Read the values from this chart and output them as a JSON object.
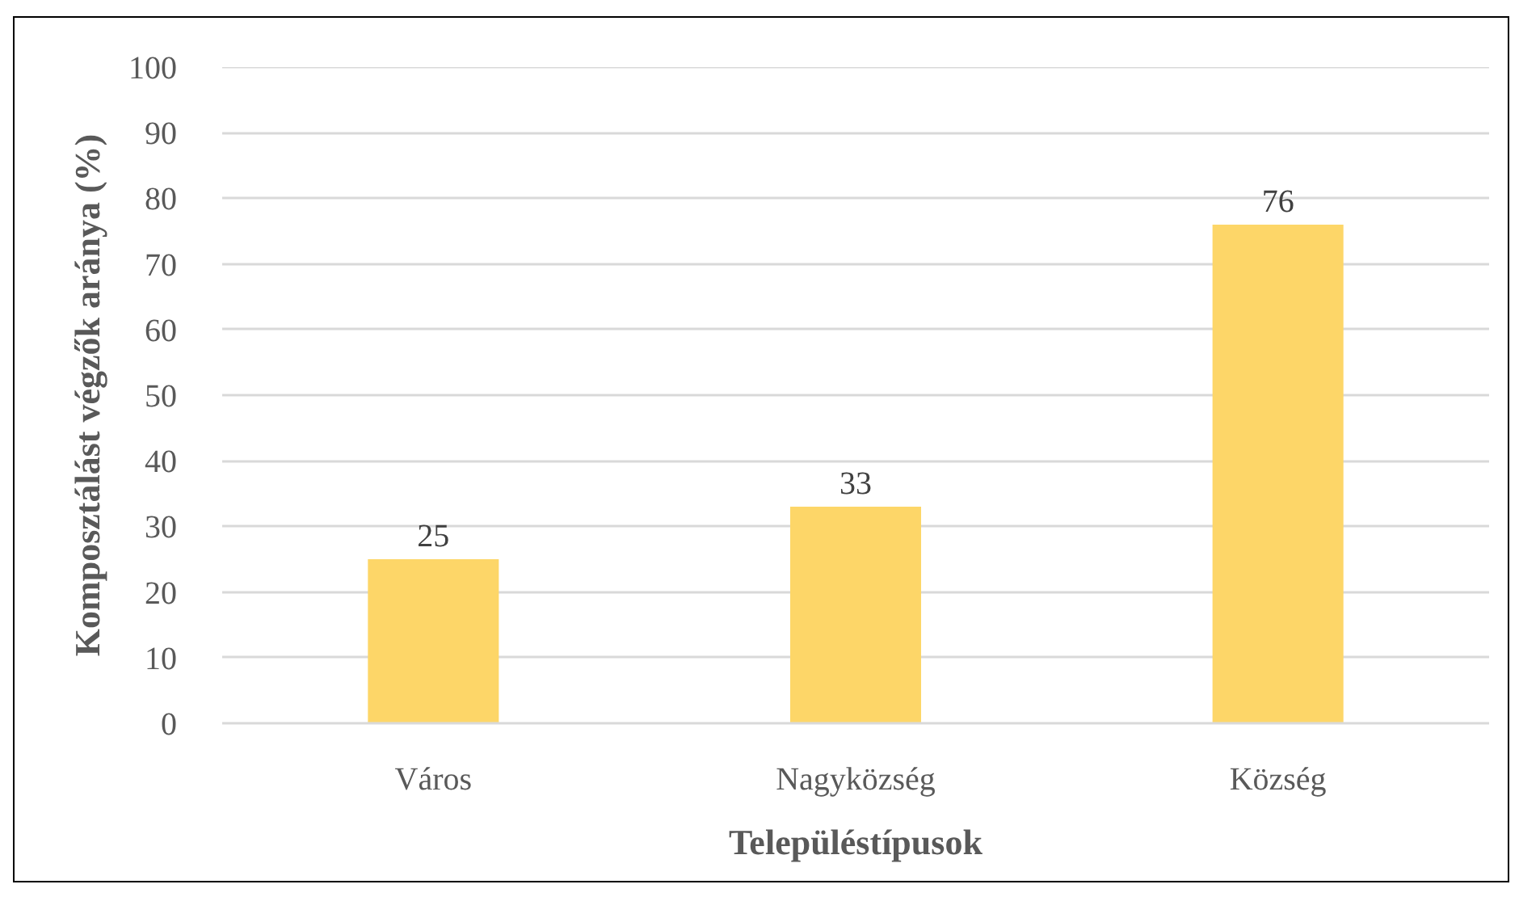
{
  "chart_data": {
    "type": "bar",
    "xlabel": "Településtípusok",
    "ylabel": "Komposztálást végzők aránya (%)",
    "categories": [
      "Város",
      "Nagyközség",
      "Község"
    ],
    "values": [
      25,
      33,
      76
    ],
    "color": "#fdd668",
    "ylim": [
      0,
      100
    ],
    "yticks": [
      0,
      10,
      20,
      30,
      40,
      50,
      60,
      70,
      80,
      90,
      100
    ],
    "grid": "y",
    "data_labels": true
  }
}
